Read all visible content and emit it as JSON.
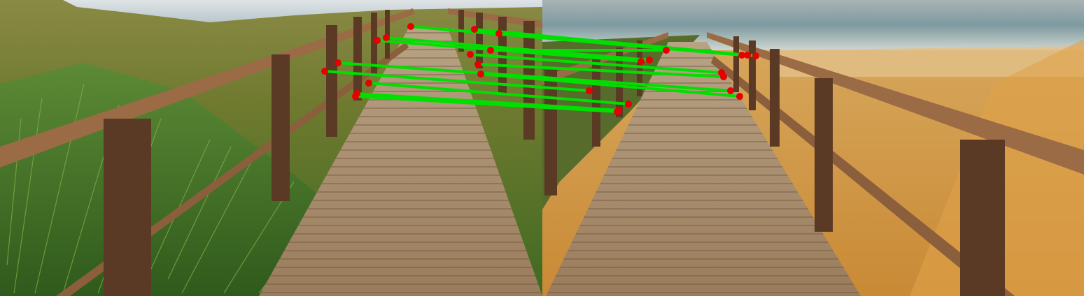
{
  "figure": {
    "kind": "feature-matching-visualization",
    "panels": [
      {
        "content": "boardwalk-through-dunes-view-1"
      },
      {
        "content": "boardwalk-to-beach-view-2"
      }
    ],
    "match_line_color": "#00e000",
    "keypoint_color": "#e60000",
    "match_count": 12
  }
}
